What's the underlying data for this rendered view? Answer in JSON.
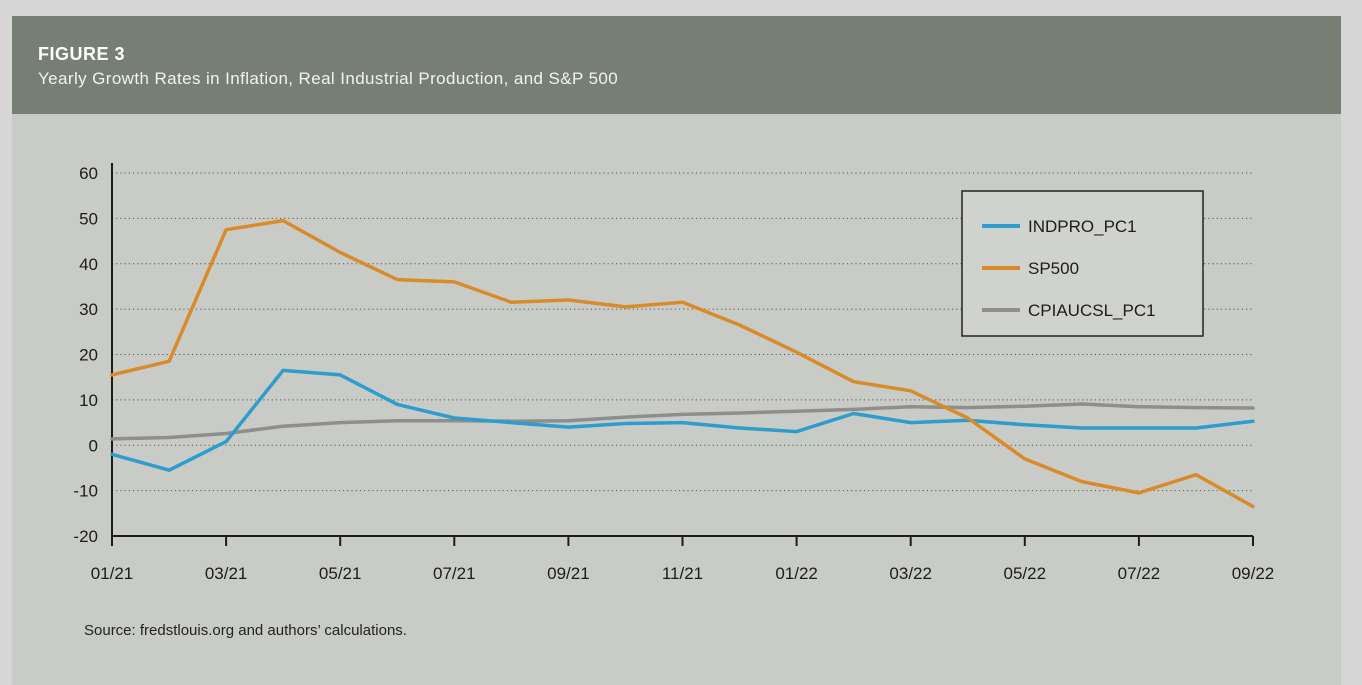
{
  "figure": {
    "label": "FIGURE 3",
    "title": "Yearly Growth Rates in Inflation, Real Industrial Production, and S&P 500",
    "source": "Source: fredstlouis.org and authors’ calculations."
  },
  "colors": {
    "INDPRO_PC1": "#2e9ccc",
    "SP500": "#d98a2b",
    "CPIAUCSL_PC1": "#8e8e8e"
  },
  "chart_data": {
    "type": "line",
    "title": "",
    "xlabel": "",
    "ylabel": "",
    "ylim": [
      -20,
      60
    ],
    "yticks": [
      60,
      50,
      40,
      30,
      20,
      10,
      0,
      -10,
      -20
    ],
    "grid": "horizontal dotted",
    "legend_position": "top-right",
    "x": [
      "01/21",
      "02/21",
      "03/21",
      "04/21",
      "05/21",
      "06/21",
      "07/21",
      "08/21",
      "09/21",
      "10/21",
      "11/21",
      "12/21",
      "01/22",
      "02/22",
      "03/22",
      "04/22",
      "05/22",
      "06/22",
      "07/22",
      "08/22",
      "09/22"
    ],
    "xtick_labels": [
      "01/21",
      "03/21",
      "05/21",
      "07/21",
      "09/21",
      "11/21",
      "01/22",
      "03/22",
      "05/22",
      "07/22",
      "09/22"
    ],
    "series": [
      {
        "name": "INDPRO_PC1",
        "values": [
          -2,
          -5.5,
          0.8,
          16.5,
          15.5,
          9,
          6,
          5,
          4,
          4.8,
          5,
          3.8,
          3,
          7,
          5,
          5.5,
          4.5,
          3.8,
          3.8,
          3.8,
          5.3
        ]
      },
      {
        "name": "SP500",
        "values": [
          15.5,
          18.5,
          47.5,
          49.5,
          42.5,
          36.5,
          36,
          31.5,
          32,
          30.5,
          31.5,
          26.5,
          20.5,
          14,
          12,
          6,
          -3,
          -8,
          -10.5,
          -6.5,
          -13.5
        ]
      },
      {
        "name": "CPIAUCSL_PC1",
        "values": [
          1.4,
          1.7,
          2.6,
          4.2,
          5,
          5.4,
          5.4,
          5.3,
          5.4,
          6.2,
          6.8,
          7.1,
          7.5,
          7.9,
          8.5,
          8.3,
          8.6,
          9.1,
          8.5,
          8.3,
          8.2
        ]
      }
    ]
  }
}
